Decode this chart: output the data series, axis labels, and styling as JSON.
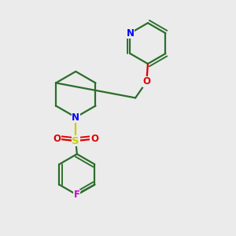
{
  "bg_color": "#ebebeb",
  "bond_color": "#2a6e2a",
  "atom_colors": {
    "N": "#0000ff",
    "O": "#dd0000",
    "S": "#cccc00",
    "F": "#cc00cc",
    "C": "#2a6e2a"
  },
  "bond_width": 1.6,
  "dbo": 0.012,
  "figsize": [
    3.0,
    3.0
  ],
  "dpi": 100,
  "xlim": [
    0.05,
    0.95
  ],
  "ylim": [
    0.03,
    0.97
  ]
}
